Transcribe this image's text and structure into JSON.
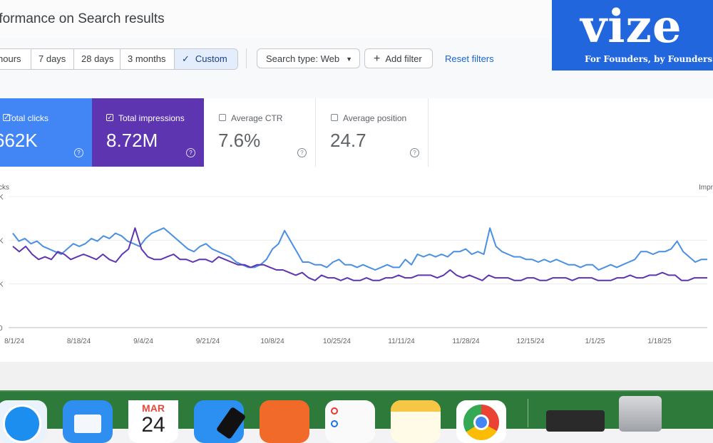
{
  "header": {
    "title": "rformance on Search results"
  },
  "date_range": {
    "options": [
      "hours",
      "7 days",
      "28 days",
      "3 months",
      "Custom"
    ],
    "selected": "Custom"
  },
  "filters": {
    "search_type": "Search type: Web",
    "add_filter": "Add filter",
    "reset": "Reset filters"
  },
  "logo": {
    "text": "vize",
    "tagline": "For Founders, by Founders"
  },
  "metrics": [
    {
      "label": "Total clicks",
      "value": "662K",
      "checked": true,
      "color": "#4285f4"
    },
    {
      "label": "Total impressions",
      "value": "8.72M",
      "checked": true,
      "color": "#5e35b1"
    },
    {
      "label": "Average CTR",
      "value": "7.6%",
      "checked": false
    },
    {
      "label": "Average position",
      "value": "24.7",
      "checked": false
    }
  ],
  "chart_data": {
    "type": "line",
    "left_axis_label": "cks",
    "right_axis_label": "Impr",
    "x_ticks": [
      "8/1/24",
      "8/18/24",
      "9/4/24",
      "9/21/24",
      "10/8/24",
      "10/25/24",
      "11/11/24",
      "11/28/24",
      "12/15/24",
      "1/1/25",
      "1/18/25"
    ],
    "y_ticks": [
      "0",
      "K",
      "K",
      "K"
    ],
    "series": [
      {
        "name": "Total clicks",
        "color": "#4a90e2",
        "values": [
          72,
          66,
          68,
          64,
          66,
          62,
          60,
          58,
          56,
          60,
          64,
          62,
          64,
          68,
          66,
          70,
          68,
          72,
          70,
          66,
          64,
          62,
          68,
          72,
          74,
          76,
          72,
          68,
          64,
          60,
          58,
          62,
          64,
          60,
          58,
          56,
          54,
          50,
          48,
          46,
          46,
          48,
          52,
          60,
          64,
          74,
          66,
          58,
          50,
          50,
          48,
          48,
          46,
          50,
          52,
          48,
          48,
          46,
          48,
          46,
          44,
          46,
          48,
          46,
          46,
          52,
          48,
          56,
          54,
          56,
          54,
          56,
          54,
          58,
          58,
          60,
          56,
          58,
          56,
          76,
          62,
          58,
          56,
          54,
          54,
          52,
          52,
          50,
          52,
          50,
          52,
          50,
          48,
          48,
          46,
          48,
          48,
          44,
          46,
          48,
          46,
          48,
          50,
          52,
          58,
          58,
          56,
          58,
          58,
          60,
          66,
          58,
          54,
          50,
          52,
          52
        ],
        "_note": ""
      },
      {
        "name": "Total impressions",
        "color": "#5e35b1",
        "values": [
          62,
          58,
          62,
          56,
          52,
          54,
          52,
          58,
          56,
          52,
          54,
          56,
          54,
          52,
          56,
          52,
          50,
          56,
          60,
          76,
          60,
          54,
          52,
          52,
          54,
          56,
          52,
          52,
          50,
          52,
          52,
          50,
          54,
          52,
          50,
          48,
          48,
          46,
          48,
          48,
          46,
          44,
          44,
          42,
          40,
          42,
          38,
          36,
          40,
          38,
          38,
          36,
          38,
          36,
          36,
          38,
          36,
          36,
          38,
          38,
          40,
          38,
          38,
          40,
          40,
          40,
          38,
          40,
          44,
          40,
          38,
          40,
          38,
          36,
          40,
          38,
          38,
          38,
          36,
          36,
          38,
          38,
          36,
          36,
          38,
          38,
          38,
          36,
          38,
          38,
          38,
          36,
          36,
          36,
          38,
          38,
          40,
          38,
          38,
          40,
          40,
          42,
          40,
          40,
          36,
          36,
          38,
          38,
          38
        ]
      }
    ]
  },
  "dock": {
    "calendar_month": "MAR",
    "calendar_day": "24"
  }
}
